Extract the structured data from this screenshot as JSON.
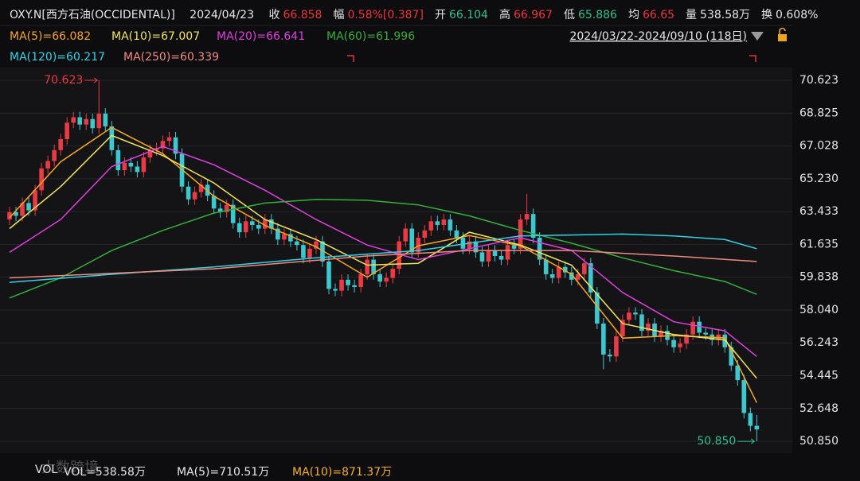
{
  "header": {
    "symbol": "OXY.N[西方石油(OCCIDENTAL)]",
    "date": "2024/04/23",
    "fields": [
      {
        "label": "收",
        "value": "66.858",
        "color": "#f0313c"
      },
      {
        "label": "幅",
        "value": "0.58%[0.387]",
        "color": "#f0313c"
      },
      {
        "label": "开",
        "value": "66.104",
        "color": "#2fc08a"
      },
      {
        "label": "高",
        "value": "66.967",
        "color": "#f0313c"
      },
      {
        "label": "低",
        "value": "65.886",
        "color": "#2fc08a"
      },
      {
        "label": "均",
        "value": "66.65",
        "color": "#f0313c"
      },
      {
        "label": "量",
        "value": "538.58万",
        "color": "#e6e6e6"
      },
      {
        "label": "换",
        "value": "0.608%",
        "color": "#e6e6e6"
      }
    ],
    "range": "2024/03/22-2024/09/10 (118日)"
  },
  "footer": {
    "watermark": "大数跨境",
    "items": [
      {
        "text": "VOL",
        "color": "#e6e6e6"
      },
      {
        "text": "VOL=538.58万",
        "color": "#e6e6e6"
      },
      {
        "text": "MA(5)=710.51万",
        "color": "#e6e6e6"
      },
      {
        "text": "MA(10)=871.37万",
        "color": "#f5b21f"
      }
    ]
  },
  "chart_data": {
    "type": "candlestick",
    "up_color": "#ec3a44",
    "down_color": "#3cc8cf",
    "grid": true,
    "ylim": [
      50.2,
      71.32
    ],
    "yticks": [
      70.623,
      68.825,
      67.028,
      {
        "value": 65.23,
        "label": "65.230"
      },
      63.433,
      61.635,
      59.838,
      {
        "value": 58.04,
        "label": "58.040"
      },
      56.243,
      54.445,
      52.648,
      {
        "value": 50.85,
        "label": "50.850"
      }
    ],
    "max_label": 70.623,
    "min_label": {
      "value": 50.85,
      "label": "50.850"
    },
    "open": [
      63.0,
      63.4,
      63.2,
      63.9,
      63.5,
      64.6,
      65.8,
      66.2,
      66.8,
      67.4,
      68.3,
      68.6,
      68.2,
      68.5,
      68.0,
      68.8,
      68.1,
      66.8,
      65.7,
      66.1,
      65.9,
      65.6,
      66.4,
      66.8,
      66.9,
      67.3,
      67.5,
      66.6,
      64.8,
      64.1,
      64.5,
      64.9,
      64.3,
      63.6,
      63.4,
      63.8,
      62.8,
      62.3,
      62.9,
      62.7,
      62.5,
      63.0,
      62.5,
      61.9,
      62.2,
      61.8,
      61.6,
      60.9,
      61.4,
      61.8,
      60.7,
      59.2,
      59.1,
      59.7,
      59.4,
      59.3,
      60.0,
      60.8,
      60.0,
      59.6,
      59.8,
      60.3,
      61.8,
      62.5,
      61.2,
      62.0,
      62.4,
      62.9,
      62.7,
      63.0,
      62.4,
      62.0,
      61.4,
      61.8,
      61.2,
      60.7,
      61.3,
      61.0,
      60.8,
      61.6,
      61.4,
      63.0,
      63.3,
      62.0,
      60.8,
      60.0,
      59.8,
      60.4,
      60.1,
      59.7,
      60.0,
      60.6,
      59.0,
      57.3,
      55.6,
      55.5,
      56.6,
      57.5,
      57.9,
      57.8,
      56.9,
      57.3,
      56.6,
      56.9,
      56.4,
      56.0,
      56.2,
      56.7,
      57.4,
      56.8,
      56.7,
      56.4,
      56.7,
      56.0,
      55.0,
      54.2,
      52.4,
      51.7
    ],
    "high": [
      63.7,
      63.7,
      64.2,
      64.2,
      64.9,
      66.1,
      66.5,
      67.1,
      67.7,
      68.6,
      68.9,
      68.9,
      68.8,
      68.8,
      70.623,
      69.1,
      68.4,
      67.1,
      66.4,
      66.4,
      66.2,
      66.7,
      67.1,
      67.2,
      67.6,
      67.8,
      67.8,
      66.9,
      65.1,
      64.8,
      65.2,
      65.2,
      64.6,
      63.9,
      64.1,
      64.1,
      63.1,
      63.2,
      63.2,
      63.0,
      63.3,
      63.3,
      62.8,
      62.5,
      62.5,
      62.1,
      61.9,
      61.7,
      62.1,
      62.1,
      61.0,
      59.5,
      60.0,
      60.0,
      59.7,
      60.3,
      61.1,
      61.1,
      60.3,
      60.1,
      60.6,
      62.1,
      62.8,
      62.8,
      62.3,
      62.7,
      63.2,
      63.2,
      63.3,
      63.3,
      62.7,
      62.3,
      62.1,
      62.1,
      61.5,
      61.6,
      61.6,
      61.3,
      61.9,
      61.9,
      63.3,
      64.4,
      63.6,
      62.3,
      61.1,
      60.3,
      60.7,
      60.7,
      60.4,
      60.3,
      60.9,
      60.9,
      59.3,
      57.6,
      55.9,
      56.9,
      57.8,
      58.2,
      58.2,
      58.1,
      57.6,
      57.6,
      57.2,
      57.2,
      56.7,
      56.5,
      57.0,
      57.7,
      57.7,
      57.1,
      57.0,
      57.0,
      57.0,
      56.3,
      55.3,
      54.5,
      52.7,
      52.3
    ],
    "low": [
      62.7,
      62.9,
      62.9,
      63.2,
      63.2,
      64.3,
      65.5,
      65.9,
      66.5,
      67.1,
      68.0,
      67.9,
      67.9,
      67.7,
      67.7,
      67.8,
      66.5,
      65.4,
      65.4,
      65.6,
      65.3,
      65.3,
      66.1,
      66.5,
      66.6,
      67.0,
      66.3,
      64.5,
      63.8,
      63.8,
      64.2,
      64.0,
      63.3,
      63.1,
      63.1,
      62.5,
      62.0,
      62.0,
      62.4,
      62.2,
      62.2,
      62.2,
      61.6,
      61.6,
      61.5,
      61.3,
      60.6,
      60.6,
      61.1,
      60.4,
      58.9,
      58.8,
      58.8,
      59.1,
      59.0,
      59.0,
      59.7,
      59.7,
      59.3,
      59.3,
      59.5,
      60.0,
      61.5,
      60.9,
      60.9,
      61.7,
      62.1,
      62.4,
      62.4,
      62.1,
      61.7,
      61.1,
      61.1,
      60.9,
      60.4,
      60.4,
      60.7,
      60.5,
      60.5,
      61.1,
      61.1,
      62.7,
      61.7,
      60.5,
      59.7,
      59.5,
      59.5,
      59.8,
      59.4,
      59.4,
      59.7,
      58.7,
      57.0,
      54.8,
      55.2,
      55.2,
      56.3,
      57.2,
      57.5,
      56.6,
      56.6,
      56.3,
      56.3,
      56.1,
      55.7,
      55.7,
      55.9,
      56.4,
      56.5,
      56.4,
      56.1,
      56.1,
      55.7,
      54.7,
      53.9,
      52.1,
      51.4,
      50.85
    ],
    "close": [
      63.4,
      63.2,
      63.9,
      63.5,
      64.6,
      65.8,
      66.2,
      66.8,
      67.4,
      68.3,
      68.6,
      68.2,
      68.5,
      68.0,
      68.8,
      68.1,
      66.8,
      65.7,
      66.1,
      65.9,
      65.6,
      66.4,
      66.8,
      66.9,
      67.3,
      67.5,
      66.6,
      64.8,
      64.1,
      64.5,
      64.9,
      64.3,
      63.6,
      63.4,
      63.8,
      62.8,
      62.3,
      62.9,
      62.7,
      62.5,
      63.0,
      62.5,
      61.9,
      62.2,
      61.8,
      61.6,
      60.9,
      61.4,
      61.8,
      60.7,
      59.2,
      59.1,
      59.7,
      59.4,
      59.3,
      60.0,
      60.8,
      60.0,
      59.6,
      59.8,
      60.3,
      61.8,
      62.5,
      61.2,
      62.0,
      62.4,
      62.9,
      62.7,
      63.0,
      62.4,
      62.0,
      61.4,
      61.8,
      61.2,
      60.7,
      61.3,
      61.0,
      60.8,
      61.6,
      61.4,
      63.0,
      63.3,
      62.0,
      60.8,
      60.0,
      59.8,
      60.4,
      60.1,
      59.7,
      60.0,
      60.6,
      59.0,
      57.3,
      55.6,
      55.5,
      56.6,
      57.5,
      57.9,
      57.8,
      56.9,
      57.3,
      56.6,
      56.9,
      56.4,
      56.0,
      56.2,
      56.7,
      57.4,
      56.8,
      56.7,
      56.4,
      56.7,
      56.0,
      55.0,
      54.2,
      52.4,
      51.7,
      51.5
    ],
    "series": [
      {
        "name": "MA(5)=66.082",
        "color": "#f5a623",
        "x": [
          0,
          8,
          16,
          24,
          32,
          40,
          48,
          56,
          64,
          72,
          80,
          88,
          96,
          104,
          112,
          117
        ],
        "values": [
          63.1,
          66.16,
          68.04,
          66.6,
          64.28,
          62.68,
          61.5,
          59.84,
          61.56,
          62.12,
          61.56,
          60.0,
          56.5,
          56.64,
          56.52,
          52.96
        ]
      },
      {
        "name": "MA(10)=67.007",
        "color": "#f2e45a",
        "x": [
          0,
          8,
          16,
          24,
          32,
          40,
          48,
          56,
          64,
          72,
          80,
          88,
          96,
          104,
          112,
          117
        ],
        "values": [
          62.5,
          64.8,
          67.6,
          66.5,
          65.0,
          63.0,
          61.9,
          60.5,
          60.6,
          62.3,
          61.6,
          60.5,
          57.3,
          56.7,
          56.4,
          54.3
        ]
      },
      {
        "name": "MA(20)=66.641",
        "color": "#e03ee0",
        "x": [
          0,
          8,
          16,
          24,
          32,
          40,
          48,
          56,
          64,
          72,
          80,
          88,
          96,
          104,
          112,
          117
        ],
        "values": [
          61.2,
          63.0,
          65.9,
          67.0,
          66.0,
          64.6,
          63.0,
          61.6,
          60.8,
          61.4,
          62.0,
          61.3,
          59.0,
          57.4,
          56.9,
          55.5
        ]
      },
      {
        "name": "MA(60)=61.996",
        "color": "#35b03a",
        "x": [
          0,
          8,
          16,
          24,
          32,
          40,
          48,
          56,
          64,
          72,
          80,
          88,
          96,
          104,
          112,
          117
        ],
        "values": [
          58.7,
          59.8,
          61.3,
          62.4,
          63.35,
          63.9,
          64.1,
          64.05,
          63.8,
          63.2,
          62.4,
          61.7,
          60.9,
          60.2,
          59.6,
          58.9
        ]
      },
      {
        "name": "MA(120)=60.217",
        "color": "#2fd3e6",
        "x": [
          0,
          16,
          32,
          48,
          64,
          80,
          96,
          104,
          112,
          117
        ],
        "values": [
          59.56,
          60.0,
          60.4,
          60.9,
          61.3,
          62.1,
          62.2,
          62.1,
          61.9,
          61.4
        ]
      },
      {
        "name": "MA(250)=60.339",
        "color": "#f08a80",
        "x": [
          0,
          32,
          56,
          72,
          88,
          104,
          117
        ],
        "values": [
          59.8,
          60.3,
          61.0,
          61.3,
          61.3,
          61.0,
          60.7
        ]
      }
    ]
  }
}
